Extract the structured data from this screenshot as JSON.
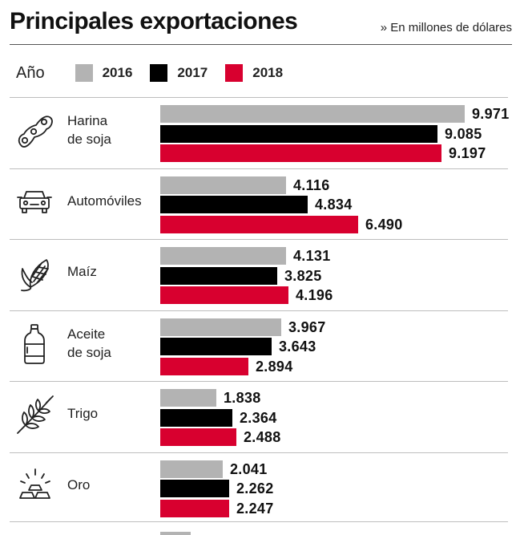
{
  "header": {
    "title": "Principales exportaciones",
    "unit_note": "» En millones de dólares"
  },
  "legend": {
    "label": "Año",
    "items": [
      {
        "name": "2016",
        "color": "#b3b3b3"
      },
      {
        "name": "2017",
        "color": "#000000"
      },
      {
        "name": "2018",
        "color": "#d8002f"
      }
    ]
  },
  "chart_data": {
    "type": "bar",
    "orientation": "horizontal",
    "title": "Principales exportaciones",
    "subtitle": "» En millones de dólares",
    "categories": [
      "Harina\nde soja",
      "Automóviles",
      "Maíz",
      "Aceite\nde soja",
      "Trigo",
      "Oro"
    ],
    "icons": [
      "soybean-icon",
      "car-icon",
      "corn-icon",
      "oil-bottle-icon",
      "wheat-icon",
      "gold-bars-icon"
    ],
    "series": [
      {
        "name": "2016",
        "color": "#b3b3b3",
        "values": [
          9971,
          4116,
          4131,
          3967,
          1838,
          2041
        ],
        "labels": [
          "9.971",
          "4.116",
          "4.131",
          "3.967",
          "1.838",
          "2.041"
        ]
      },
      {
        "name": "2017",
        "color": "#000000",
        "values": [
          9085,
          4834,
          3825,
          3643,
          2364,
          2262
        ],
        "labels": [
          "9.085",
          "4.834",
          "3.825",
          "3.643",
          "2.364",
          "2.262"
        ]
      },
      {
        "name": "2018",
        "color": "#d8002f",
        "values": [
          9197,
          6490,
          4196,
          2894,
          2488,
          2247
        ],
        "labels": [
          "9.197",
          "6.490",
          "4.196",
          "2.894",
          "2.488",
          "2.247"
        ]
      }
    ],
    "xlim": [
      0,
      10000
    ],
    "grid": false,
    "legend_position": "top-left"
  }
}
